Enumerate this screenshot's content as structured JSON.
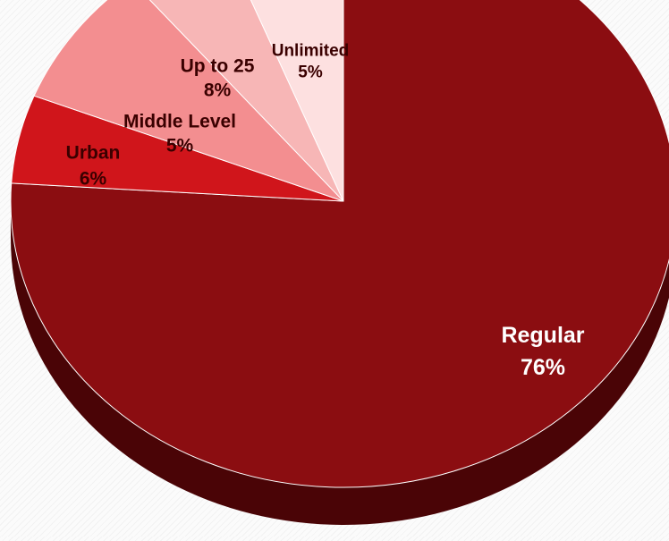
{
  "chart_data": {
    "type": "pie",
    "style": "3d",
    "categories": [
      "Regular",
      "Unlimited",
      "Up to 25",
      "Middle Level",
      "Urban"
    ],
    "values": [
      76,
      5,
      8,
      5,
      6
    ],
    "value_labels": [
      "76%",
      "5%",
      "8%",
      "5%",
      "6%"
    ],
    "colors": [
      "#8b0d11",
      "#d0151b",
      "#f38e90",
      "#f7b6b6",
      "#fde0e0"
    ],
    "side_colors": [
      "#4a0406",
      "#6e0a0e",
      "#b96466",
      "#c98b8b",
      "#d9b5b5"
    ],
    "label_colors": [
      "#ffffff",
      "#3a0000",
      "#3a0000",
      "#3a0000",
      "#3a0000"
    ],
    "title": "",
    "legend": "none"
  }
}
